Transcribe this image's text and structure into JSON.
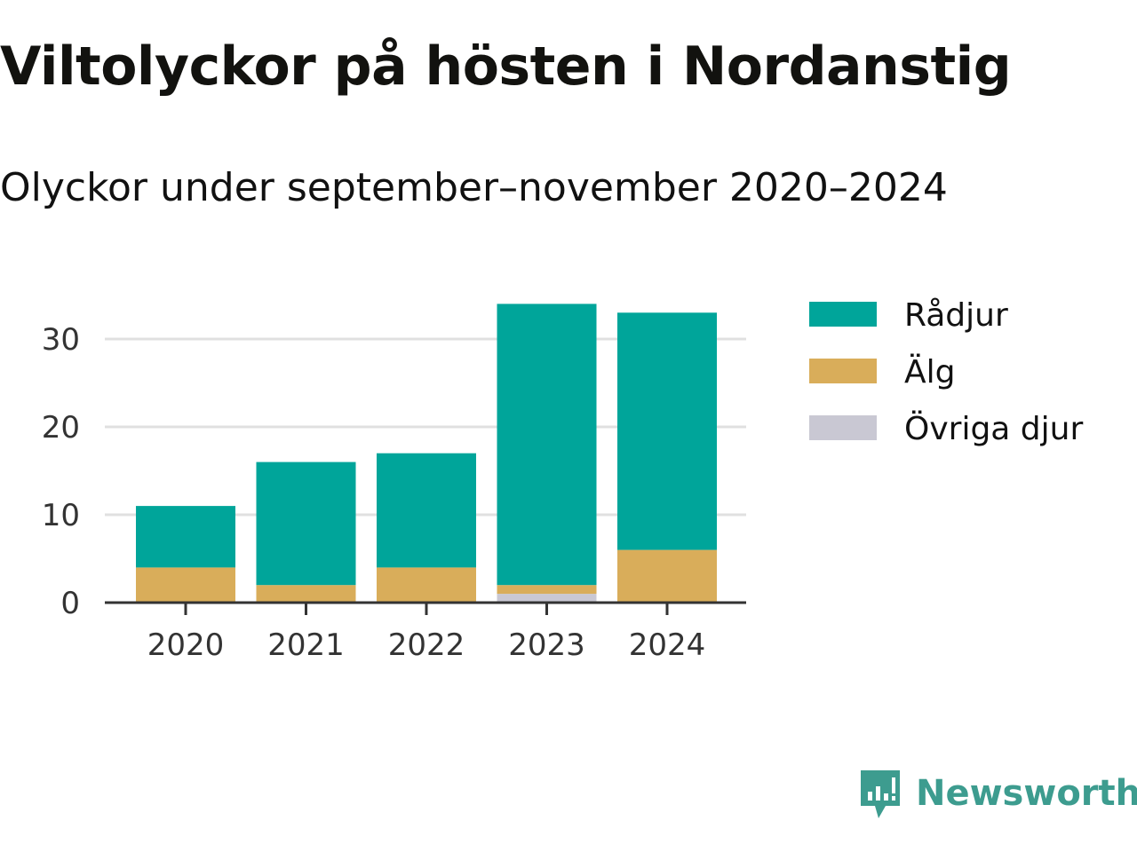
{
  "title": "Viltolyckor på hösten i Nordanstig",
  "subtitle": "Olyckor under september–november 2020–2024",
  "brand": "Newsworthy",
  "chart_data": {
    "type": "bar",
    "stacked": true,
    "categories": [
      "2020",
      "2021",
      "2022",
      "2023",
      "2024"
    ],
    "series": [
      {
        "name": "Övriga djur",
        "color": "#c9c8d3",
        "values": [
          0,
          0,
          0,
          1,
          0
        ]
      },
      {
        "name": "Älg",
        "color": "#d9ad5a",
        "values": [
          4,
          2,
          4,
          1,
          6
        ]
      },
      {
        "name": "Rådjur",
        "color": "#00a59a",
        "values": [
          7,
          14,
          13,
          32,
          27
        ]
      }
    ],
    "legend_order": [
      "Rådjur",
      "Älg",
      "Övriga djur"
    ],
    "yticks": [
      0,
      10,
      20,
      30
    ],
    "ylim": [
      0,
      35
    ],
    "grid": true,
    "legend_placement": "right"
  }
}
